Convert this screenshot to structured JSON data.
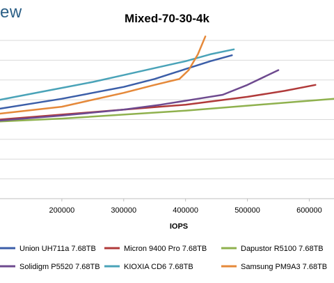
{
  "watermark_text": "ew",
  "chart_data": {
    "type": "line",
    "title": "Mixed-70-30-4k",
    "xlabel": "IOPS",
    "ylabel": "",
    "x_ticks": [
      200000,
      300000,
      400000,
      500000,
      600000
    ],
    "x_tick_labels": [
      "200000",
      "300000",
      "400000",
      "500000",
      "600000"
    ],
    "xlim": [
      100000,
      640000
    ],
    "ylim": [
      0,
      8
    ],
    "y_gridlines": [
      1,
      2,
      3,
      4,
      5,
      6,
      7,
      8
    ],
    "grid": true,
    "legend_position": "bottom",
    "series": [
      {
        "name": "Union UH711a 7.68TB",
        "color": "#3b5ea8",
        "points": [
          [
            100000,
            4.55
          ],
          [
            150000,
            4.8
          ],
          [
            200000,
            5.05
          ],
          [
            250000,
            5.35
          ],
          [
            300000,
            5.65
          ],
          [
            350000,
            6.05
          ],
          [
            400000,
            6.55
          ],
          [
            440000,
            6.95
          ],
          [
            475000,
            7.25
          ]
        ]
      },
      {
        "name": "Micron 9400 Pro 7.68TB",
        "color": "#b03a3a",
        "points": [
          [
            100000,
            4.0
          ],
          [
            200000,
            4.25
          ],
          [
            300000,
            4.5
          ],
          [
            400000,
            4.75
          ],
          [
            500000,
            5.15
          ],
          [
            560000,
            5.45
          ],
          [
            610000,
            5.75
          ]
        ]
      },
      {
        "name": "Dapustor R5100 7.68TB",
        "color": "#8fb14e",
        "points": [
          [
            100000,
            3.9
          ],
          [
            200000,
            4.05
          ],
          [
            300000,
            4.25
          ],
          [
            400000,
            4.45
          ],
          [
            500000,
            4.7
          ],
          [
            560000,
            4.85
          ],
          [
            640000,
            5.05
          ]
        ]
      },
      {
        "name": "Solidigm P5520 7.68TB",
        "color": "#6e4a8f",
        "points": [
          [
            100000,
            3.95
          ],
          [
            200000,
            4.2
          ],
          [
            300000,
            4.5
          ],
          [
            360000,
            4.75
          ],
          [
            420000,
            5.05
          ],
          [
            460000,
            5.25
          ],
          [
            500000,
            5.75
          ],
          [
            550000,
            6.5
          ]
        ]
      },
      {
        "name": "KIOXIA CD6 7.68TB",
        "color": "#4aa3b8",
        "points": [
          [
            100000,
            5.0
          ],
          [
            150000,
            5.3
          ],
          [
            200000,
            5.6
          ],
          [
            250000,
            5.9
          ],
          [
            300000,
            6.25
          ],
          [
            350000,
            6.6
          ],
          [
            400000,
            6.95
          ],
          [
            440000,
            7.3
          ],
          [
            478000,
            7.55
          ]
        ]
      },
      {
        "name": "Samsung PM9A3 7.68TB",
        "color": "#e5893a",
        "points": [
          [
            100000,
            4.3
          ],
          [
            200000,
            4.65
          ],
          [
            250000,
            5.0
          ],
          [
            300000,
            5.35
          ],
          [
            350000,
            5.75
          ],
          [
            390000,
            6.05
          ],
          [
            405000,
            6.5
          ],
          [
            420000,
            7.3
          ],
          [
            432000,
            8.2
          ]
        ]
      }
    ]
  }
}
